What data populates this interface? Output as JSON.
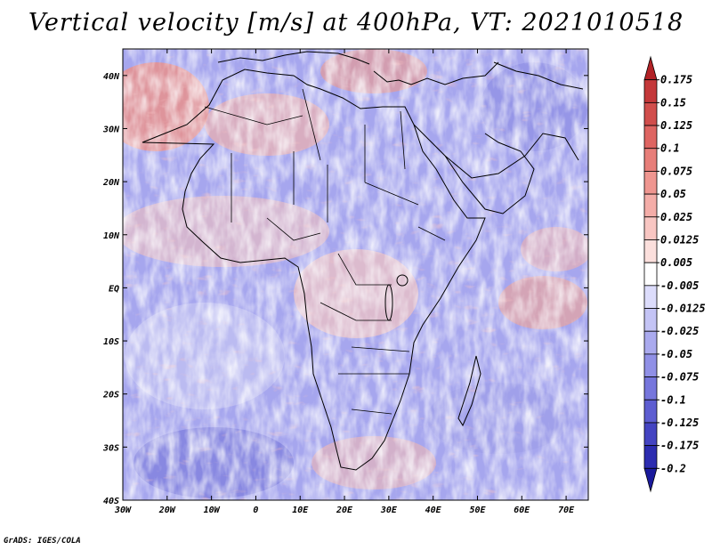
{
  "title": "Vertical velocity [m/s] at 400hPa, VT: 2021010518",
  "credit": "GrADS: IGES/COLA",
  "map": {
    "lon_range": [
      -30,
      75
    ],
    "lat_range": [
      -40,
      45
    ],
    "lat_ticks": [
      {
        "value": 40,
        "label": "40N"
      },
      {
        "value": 30,
        "label": "30N"
      },
      {
        "value": 20,
        "label": "20N"
      },
      {
        "value": 10,
        "label": "10N"
      },
      {
        "value": 0,
        "label": "EQ"
      },
      {
        "value": -10,
        "label": "10S"
      },
      {
        "value": -20,
        "label": "20S"
      },
      {
        "value": -30,
        "label": "30S"
      },
      {
        "value": -40,
        "label": "40S"
      }
    ],
    "lon_ticks": [
      {
        "value": -30,
        "label": "30W"
      },
      {
        "value": -20,
        "label": "20W"
      },
      {
        "value": -10,
        "label": "10W"
      },
      {
        "value": 0,
        "label": "0"
      },
      {
        "value": 10,
        "label": "10E"
      },
      {
        "value": 20,
        "label": "20E"
      },
      {
        "value": 30,
        "label": "30E"
      },
      {
        "value": 40,
        "label": "40E"
      },
      {
        "value": 50,
        "label": "50E"
      },
      {
        "value": 60,
        "label": "60E"
      },
      {
        "value": 70,
        "label": "70E"
      }
    ]
  },
  "colorbar": {
    "labels": [
      "0.175",
      "0.15",
      "0.125",
      "0.1",
      "0.075",
      "0.05",
      "0.025",
      "0.0125",
      "0.005",
      "-0.005",
      "-0.0125",
      "-0.025",
      "-0.05",
      "-0.075",
      "-0.1",
      "-0.125",
      "-0.175",
      "-0.2"
    ],
    "colors": [
      "#b22226",
      "#c4383a",
      "#d14e4c",
      "#de6562",
      "#e77e79",
      "#ef9690",
      "#f4ada8",
      "#f8c6c2",
      "#fbdfdc",
      "#ffffff",
      "#dcdcfb",
      "#c4c4f5",
      "#aaaaee",
      "#9090e6",
      "#7676dc",
      "#5d5dd1",
      "#4444c2",
      "#2c2cb0",
      "#1a1a9c"
    ]
  },
  "chart_data": {
    "type": "heatmap",
    "title": "Vertical velocity [m/s] at 400hPa, VT: 2021010518",
    "variable": "Vertical velocity",
    "units": "m/s",
    "level": "400hPa",
    "valid_time": "2021010518",
    "x_range": [
      -30,
      75
    ],
    "y_range": [
      -40,
      45
    ],
    "x_tick_labels": [
      "30W",
      "20W",
      "10W",
      "0",
      "10E",
      "20E",
      "30E",
      "40E",
      "50E",
      "60E",
      "70E"
    ],
    "y_tick_labels": [
      "40N",
      "30N",
      "20N",
      "10N",
      "EQ",
      "10S",
      "20S",
      "30S",
      "40S"
    ],
    "contour_levels": [
      -0.2,
      -0.175,
      -0.125,
      -0.1,
      -0.075,
      -0.05,
      -0.025,
      -0.0125,
      -0.005,
      0.005,
      0.0125,
      0.025,
      0.05,
      0.075,
      0.1,
      0.125,
      0.15,
      0.175
    ]
  }
}
